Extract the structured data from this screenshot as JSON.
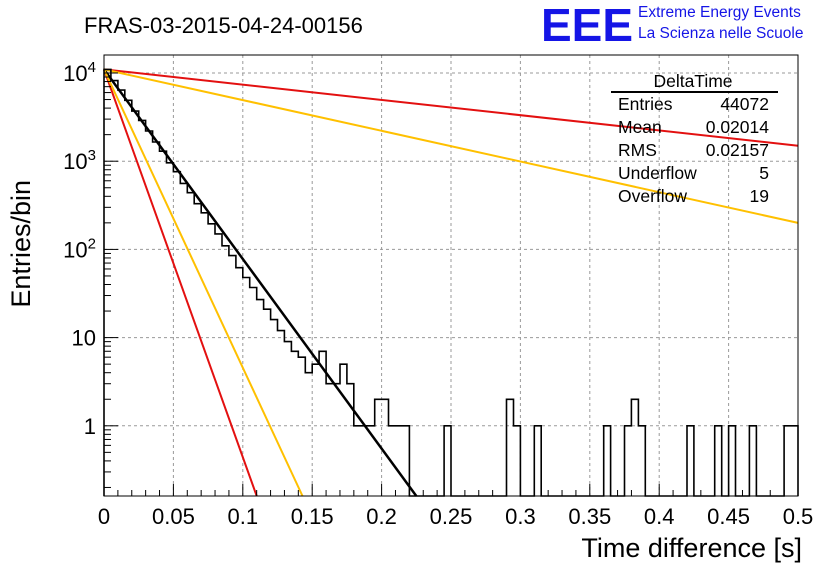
{
  "title": "FRAS-03-2015-04-24-00156",
  "logo": {
    "mark": "EEE",
    "line1": "Extreme Energy Events",
    "line2": "La Scienza nelle Scuole",
    "color": "#1515e6"
  },
  "stats_box": {
    "name": "DeltaTime",
    "rows": [
      {
        "label": "Entries",
        "value": "44072"
      },
      {
        "label": "Mean",
        "value": "0.02014"
      },
      {
        "label": "RMS",
        "value": "0.02157"
      },
      {
        "label": "Underflow",
        "value": "5"
      },
      {
        "label": "Overflow",
        "value": "19"
      }
    ]
  },
  "chart_data": {
    "type": "line",
    "xlabel": "Time difference [s]",
    "ylabel": "Entries/bin",
    "xlim": [
      0,
      0.5
    ],
    "ylim": [
      0.16,
      16000
    ],
    "yscale": "log",
    "grid": true,
    "x_ticks": [
      "0",
      "0.05",
      "0.1",
      "0.15",
      "0.2",
      "0.25",
      "0.3",
      "0.35",
      "0.4",
      "0.45",
      "0.5"
    ],
    "y_ticks": [
      {
        "base": "10",
        "exp": "4"
      },
      {
        "base": "10",
        "exp": "3"
      },
      {
        "base": "10",
        "exp": "2"
      },
      {
        "base": "10",
        "exp": ""
      },
      {
        "base": "1",
        "exp": ""
      }
    ],
    "histogram": {
      "color": "#000000",
      "bin_width": 0.005,
      "contents": [
        11000,
        8200,
        6400,
        4900,
        3700,
        2900,
        2200,
        1650,
        1300,
        960,
        760,
        560,
        440,
        330,
        260,
        195,
        150,
        110,
        85,
        62,
        48,
        37,
        27,
        21,
        16,
        12,
        9,
        7,
        6,
        4,
        5,
        7,
        3,
        3,
        5,
        3,
        1,
        1,
        1,
        2,
        2,
        1,
        1,
        1,
        0,
        0,
        0,
        0,
        0,
        1,
        0,
        0,
        0,
        0,
        0,
        0,
        0,
        0,
        2,
        1,
        0,
        0,
        1,
        0,
        0,
        0,
        0,
        0,
        0,
        0,
        0,
        0,
        1,
        0,
        0,
        1,
        2,
        1,
        0,
        0,
        0,
        0,
        0,
        0,
        1,
        0,
        0,
        0,
        1,
        0,
        1,
        0,
        0,
        1,
        0,
        0,
        0,
        0,
        1,
        1
      ]
    },
    "series": [
      {
        "color": "#000000",
        "x": [
          0,
          0.225
        ],
        "y": [
          11000,
          0.16
        ]
      },
      {
        "color": "#e31010",
        "x": [
          0,
          0.11
        ],
        "y": [
          11000,
          0.16
        ]
      },
      {
        "color": "#ffc000",
        "x": [
          0,
          0.143
        ],
        "y": [
          11000,
          0.16
        ]
      },
      {
        "color": "#e31010",
        "x": [
          0,
          0.5
        ],
        "y": [
          11000,
          1500
        ]
      },
      {
        "color": "#ffc000",
        "x": [
          0,
          0.5
        ],
        "y": [
          11000,
          200
        ]
      }
    ]
  }
}
